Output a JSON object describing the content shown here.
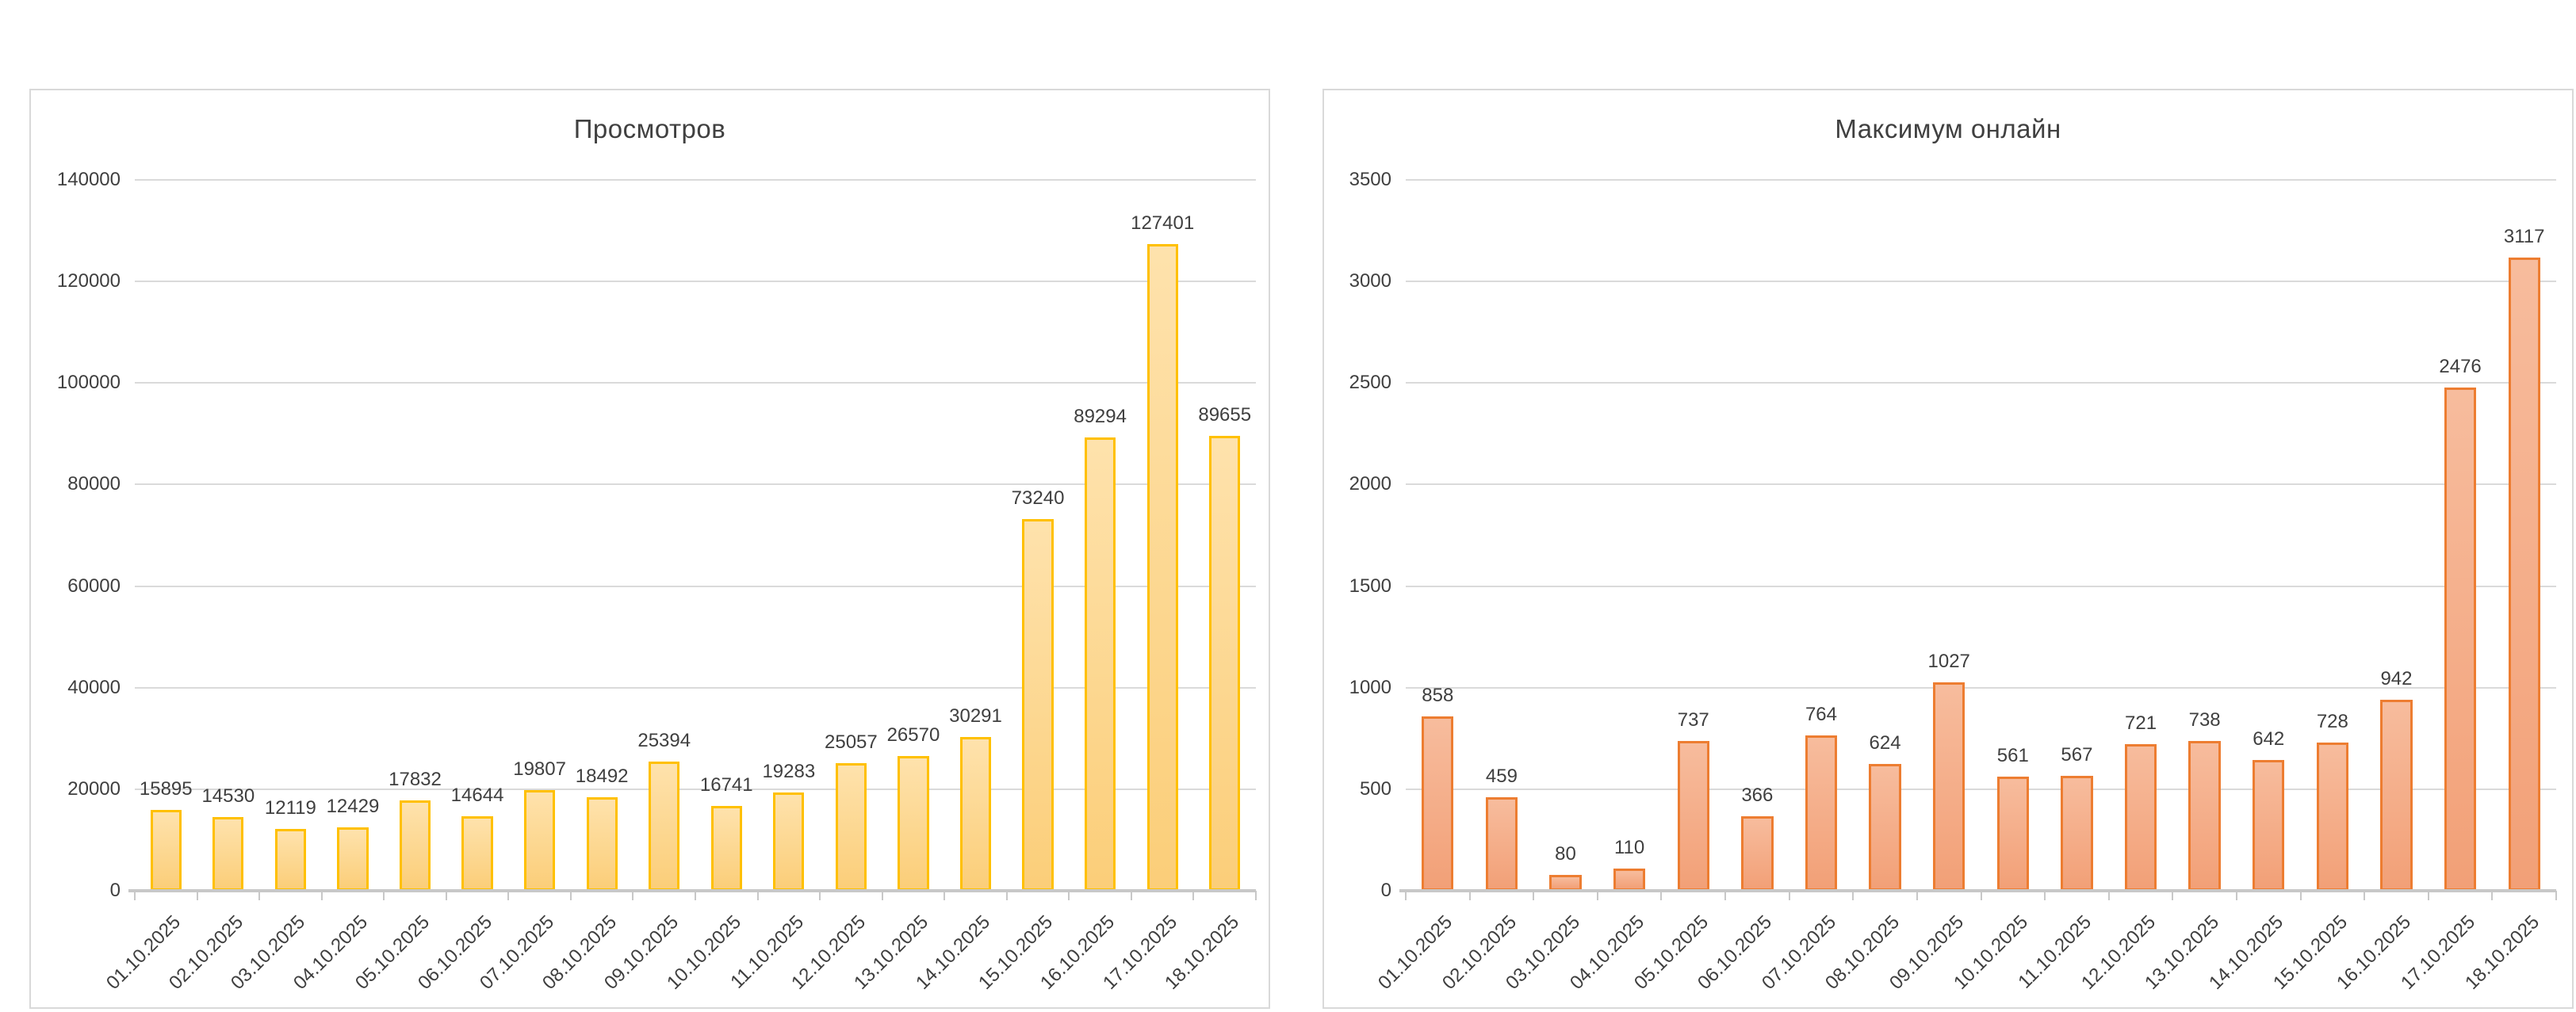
{
  "page": {
    "background": "#FFFFFF"
  },
  "chart_data": [
    {
      "type": "bar",
      "title": "Просмотров",
      "categories": [
        "01.10.2025",
        "02.10.2025",
        "03.10.2025",
        "04.10.2025",
        "05.10.2025",
        "06.10.2025",
        "07.10.2025",
        "08.10.2025",
        "09.10.2025",
        "10.10.2025",
        "11.10.2025",
        "12.10.2025",
        "13.10.2025",
        "14.10.2025",
        "15.10.2025",
        "16.10.2025",
        "17.10.2025",
        "18.10.2025"
      ],
      "values": [
        15895,
        14530,
        12119,
        12429,
        17832,
        14644,
        19807,
        18492,
        25394,
        16741,
        19283,
        25057,
        26570,
        30291,
        73240,
        89294,
        127401,
        89655
      ],
      "ylim": [
        0,
        140000
      ],
      "ytick_step": 20000,
      "y_tick_labels": [
        "0",
        "20000",
        "40000",
        "60000",
        "80000",
        "100000",
        "120000",
        "140000"
      ],
      "grid": true,
      "legend": "none",
      "value_labels": true,
      "x_label_rotation_deg": -45,
      "bar_border_color": "#FFC000",
      "bar_fill_top": "#FEE2AC",
      "bar_fill_bottom": "#FBCE79",
      "gridline_color": "#DADADA",
      "axis_color": "#C8C8C8",
      "text_color": "#3F3F3F"
    },
    {
      "type": "bar",
      "title": "Максимум онлайн",
      "categories": [
        "01.10.2025",
        "02.10.2025",
        "03.10.2025",
        "04.10.2025",
        "05.10.2025",
        "06.10.2025",
        "07.10.2025",
        "08.10.2025",
        "09.10.2025",
        "10.10.2025",
        "11.10.2025",
        "12.10.2025",
        "13.10.2025",
        "14.10.2025",
        "15.10.2025",
        "16.10.2025",
        "17.10.2025",
        "18.10.2025"
      ],
      "values": [
        858,
        459,
        80,
        110,
        737,
        366,
        764,
        624,
        1027,
        561,
        567,
        721,
        738,
        642,
        728,
        942,
        2476,
        3117
      ],
      "ylim": [
        0,
        3500
      ],
      "ytick_step": 500,
      "y_tick_labels": [
        "0",
        "500",
        "1000",
        "1500",
        "2000",
        "2500",
        "3000",
        "3500"
      ],
      "grid": true,
      "legend": "none",
      "value_labels": true,
      "x_label_rotation_deg": -45,
      "bar_border_color": "#ED7D31",
      "bar_fill_top": "#F7BC9D",
      "bar_fill_bottom": "#F2A077",
      "gridline_color": "#DADADA",
      "axis_color": "#C8C8C8",
      "text_color": "#3F3F3F"
    }
  ]
}
